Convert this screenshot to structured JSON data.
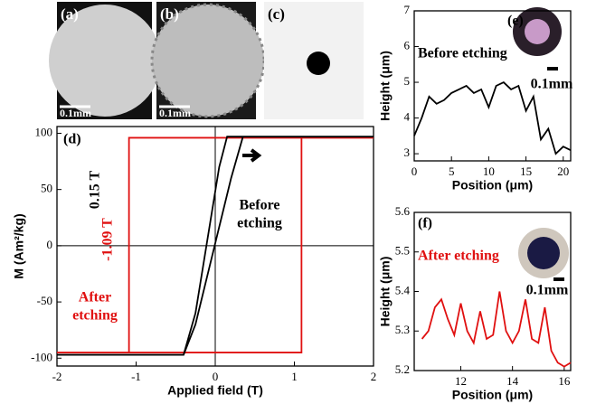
{
  "image_panels": [
    {
      "label": "(a)",
      "scale_bar": "0.1mm"
    },
    {
      "label": "(b)",
      "scale_bar": "0.1mm"
    },
    {
      "label": "(c)"
    }
  ],
  "chart_data": [
    {
      "type": "line",
      "x_label": "Applied field (T)",
      "y_label": "M (Am²/kg)",
      "xlim": [
        -2,
        2
      ],
      "xticks": [
        -2,
        -1,
        0,
        1,
        2
      ],
      "ylim": [
        -107,
        106
      ],
      "yticks": [
        -100,
        -50,
        0,
        50,
        100
      ],
      "annotations": [
        {
          "text": "(d)",
          "color": "#000000"
        },
        {
          "text": "-1.09 T",
          "color": "#e01010"
        },
        {
          "text": "0.15 T",
          "color": "#000000"
        },
        {
          "text": "Before",
          "color": "#000000"
        },
        {
          "text": "etching",
          "color": "#000000"
        },
        {
          "text": "After",
          "color": "#e01010"
        },
        {
          "text": "etching",
          "color": "#e01010"
        }
      ],
      "series": [
        {
          "color": "#e01010",
          "x": [
            -2,
            1.09,
            1.09,
            2,
            -1.09,
            -1.09,
            -2
          ],
          "values": [
            -95,
            -95,
            96,
            96,
            96,
            -95,
            -95
          ]
        },
        {
          "color": "#000000",
          "x": [
            -2,
            -0.4,
            -0.25,
            0.2,
            0.35,
            2,
            0.15,
            0.05,
            -0.25,
            -0.4
          ],
          "values": [
            -97,
            -97,
            -70,
            60,
            97,
            97,
            97,
            70,
            -60,
            -97
          ]
        }
      ]
    },
    {
      "type": "line",
      "x_label": "Position (μm)",
      "y_label": "Height (μm)",
      "xlim": [
        0,
        21
      ],
      "xticks": [
        0,
        5,
        10,
        15,
        20
      ],
      "ylim": [
        2.8,
        7
      ],
      "yticks": [
        3,
        4,
        5,
        6,
        7
      ],
      "annotations": [
        {
          "text": "(e)",
          "color": "#000000"
        },
        {
          "text": "Before etching",
          "color": "#000000"
        },
        {
          "text": "0.1mm",
          "color": "#000000"
        }
      ],
      "series": [
        {
          "color": "#000000",
          "x": [
            0,
            1,
            2,
            3,
            4,
            5,
            6,
            7,
            8,
            9,
            10,
            11,
            12,
            13,
            14,
            15,
            16,
            17,
            18,
            19,
            20,
            21
          ],
          "values": [
            3.5,
            4.0,
            4.6,
            4.4,
            4.5,
            4.7,
            4.8,
            4.9,
            4.7,
            4.8,
            4.3,
            4.9,
            5.0,
            4.8,
            4.9,
            4.2,
            4.6,
            3.4,
            3.7,
            3.0,
            3.2,
            3.1
          ]
        }
      ]
    },
    {
      "type": "line",
      "x_label": "Position (μm)",
      "y_label": "Height (μm)",
      "xlim": [
        10.2,
        16.25
      ],
      "xticks": [
        12,
        14,
        16
      ],
      "ylim": [
        5.2,
        5.6
      ],
      "yticks": [
        5.2,
        5.3,
        5.4,
        5.5,
        5.6
      ],
      "annotations": [
        {
          "text": "(f)",
          "color": "#000000"
        },
        {
          "text": "After etching",
          "color": "#e01010"
        },
        {
          "text": "0.1mm",
          "color": "#000000"
        }
      ],
      "series": [
        {
          "color": "#e01010",
          "x": [
            10.5,
            10.75,
            11,
            11.25,
            11.5,
            11.75,
            12,
            12.25,
            12.5,
            12.75,
            13,
            13.25,
            13.5,
            13.75,
            14,
            14.25,
            14.5,
            14.75,
            15,
            15.25,
            15.5,
            15.75,
            16,
            16.25
          ],
          "values": [
            5.28,
            5.3,
            5.36,
            5.38,
            5.33,
            5.29,
            5.37,
            5.3,
            5.27,
            5.35,
            5.28,
            5.29,
            5.4,
            5.3,
            5.27,
            5.3,
            5.38,
            5.28,
            5.27,
            5.36,
            5.25,
            5.22,
            5.21,
            5.22
          ]
        }
      ]
    }
  ]
}
